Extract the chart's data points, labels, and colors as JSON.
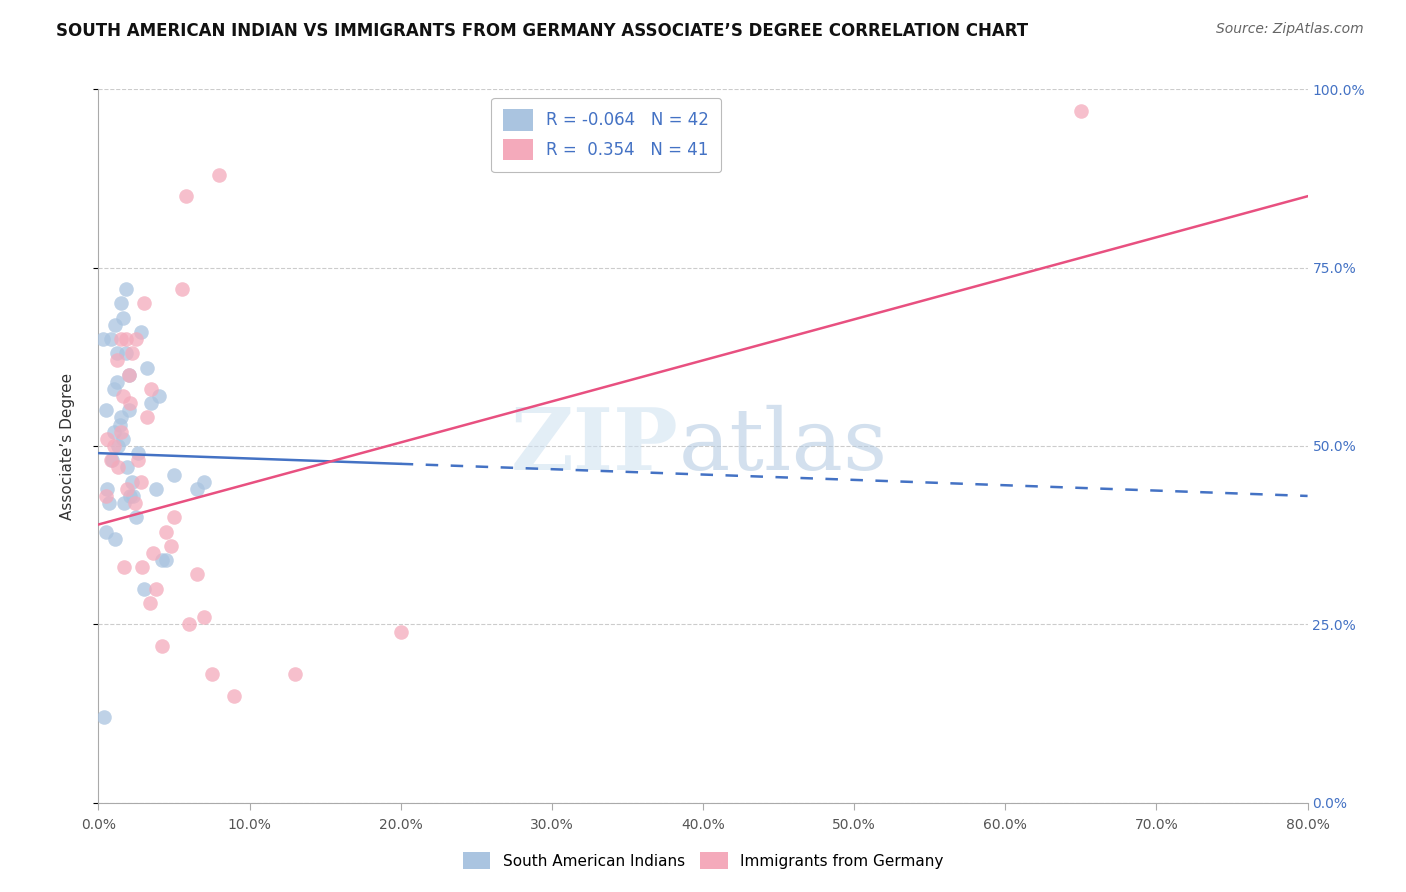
{
  "title": "SOUTH AMERICAN INDIAN VS IMMIGRANTS FROM GERMANY ASSOCIATE’S DEGREE CORRELATION CHART",
  "source": "Source: ZipAtlas.com",
  "ylabel": "Associate’s Degree",
  "xmin": 0.0,
  "xmax": 80.0,
  "ymin": 0.0,
  "ymax": 100.0,
  "blue_R": -0.064,
  "blue_N": 42,
  "pink_R": 0.354,
  "pink_N": 41,
  "blue_color": "#aac4e0",
  "pink_color": "#f4aabb",
  "blue_line_color": "#4472c4",
  "pink_line_color": "#e85080",
  "legend_blue_label": "South American Indians",
  "legend_pink_label": "Immigrants from Germany",
  "blue_scatter_x": [
    0.4,
    0.5,
    0.6,
    0.7,
    0.8,
    0.9,
    1.0,
    1.0,
    1.1,
    1.1,
    1.2,
    1.2,
    1.3,
    1.4,
    1.5,
    1.5,
    1.6,
    1.6,
    1.7,
    1.8,
    1.8,
    1.9,
    2.0,
    2.0,
    2.1,
    2.2,
    2.3,
    2.5,
    2.6,
    2.8,
    3.0,
    3.2,
    3.5,
    3.8,
    4.0,
    4.2,
    4.5,
    5.0,
    6.5,
    7.0,
    0.3,
    0.5
  ],
  "blue_scatter_y": [
    12,
    38,
    44,
    42,
    65,
    48,
    58,
    52,
    67,
    37,
    63,
    59,
    50,
    53,
    70,
    54,
    68,
    51,
    42,
    72,
    63,
    47,
    60,
    55,
    43,
    45,
    43,
    40,
    49,
    66,
    30,
    61,
    56,
    44,
    57,
    34,
    34,
    46,
    44,
    45,
    65,
    55
  ],
  "pink_scatter_x": [
    0.5,
    0.6,
    0.8,
    1.0,
    1.2,
    1.3,
    1.5,
    1.5,
    1.6,
    1.7,
    1.8,
    1.9,
    2.0,
    2.1,
    2.2,
    2.4,
    2.5,
    2.6,
    2.8,
    2.9,
    3.0,
    3.2,
    3.4,
    3.5,
    3.6,
    3.8,
    4.2,
    4.5,
    4.8,
    5.0,
    5.5,
    5.8,
    6.0,
    6.5,
    7.0,
    7.5,
    8.0,
    9.0,
    13.0,
    20.0,
    65.0
  ],
  "pink_scatter_y": [
    43,
    51,
    48,
    50,
    62,
    47,
    52,
    65,
    57,
    33,
    65,
    44,
    60,
    56,
    63,
    42,
    65,
    48,
    45,
    33,
    70,
    54,
    28,
    58,
    35,
    30,
    22,
    38,
    36,
    40,
    72,
    85,
    25,
    32,
    26,
    18,
    88,
    15,
    18,
    24,
    97
  ],
  "blue_line_x0": 0.0,
  "blue_line_x_solid_end": 20.0,
  "blue_line_x1": 80.0,
  "blue_line_y0": 49.0,
  "blue_line_y1": 43.0,
  "pink_line_x0": 0.0,
  "pink_line_x1": 80.0,
  "pink_line_y0": 39.0,
  "pink_line_y1": 85.0,
  "watermark_zip": "ZIP",
  "watermark_atlas": "atlas",
  "background_color": "#ffffff",
  "grid_color": "#cccccc",
  "grid_linestyle": "--",
  "title_fontsize": 12,
  "source_fontsize": 10,
  "tick_fontsize": 10,
  "ylabel_fontsize": 11,
  "legend_fontsize": 12
}
